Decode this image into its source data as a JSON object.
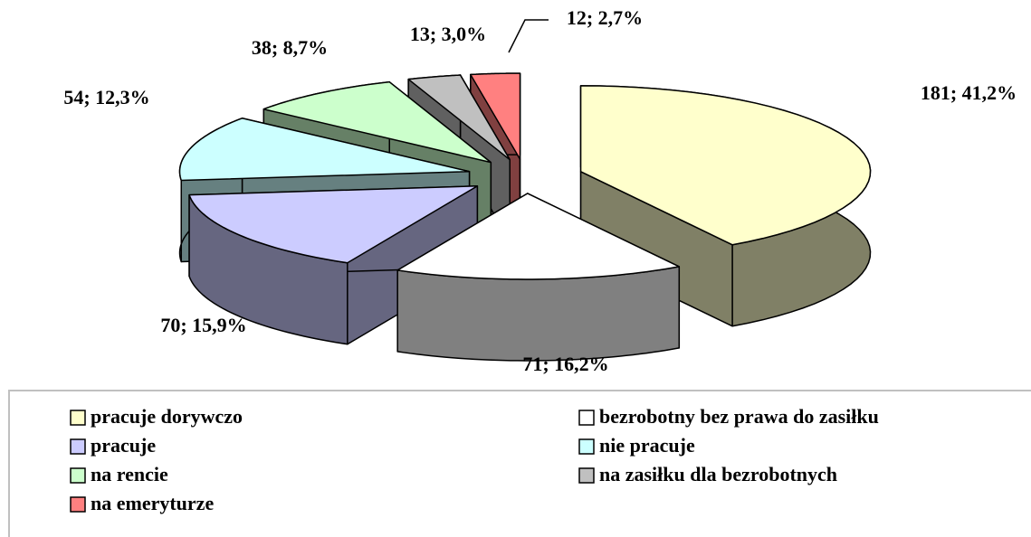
{
  "chart_data": {
    "type": "pie",
    "categories": [
      "pracuje dorywczo",
      "bezrobotny bez prawa do zasiłku",
      "pracuje",
      "nie pracuje",
      "na rencie",
      "na zasiłku dla bezrobotnych",
      "na emeryturze"
    ],
    "values": [
      181,
      71,
      70,
      54,
      38,
      13,
      12
    ],
    "value_labels": [
      "181; 41,2%",
      "71; 16,2%",
      "70; 15,9%",
      "54; 12,3%",
      "38; 8,7%",
      "13; 3,0%",
      "12; 2,7%"
    ],
    "colors": [
      "#FFFFCC",
      "#FFFFFF",
      "#CCCCFF",
      "#CCFFFF",
      "#CCFFCC",
      "#C0C0C0",
      "#FF8080"
    ],
    "legend": "bottom"
  }
}
